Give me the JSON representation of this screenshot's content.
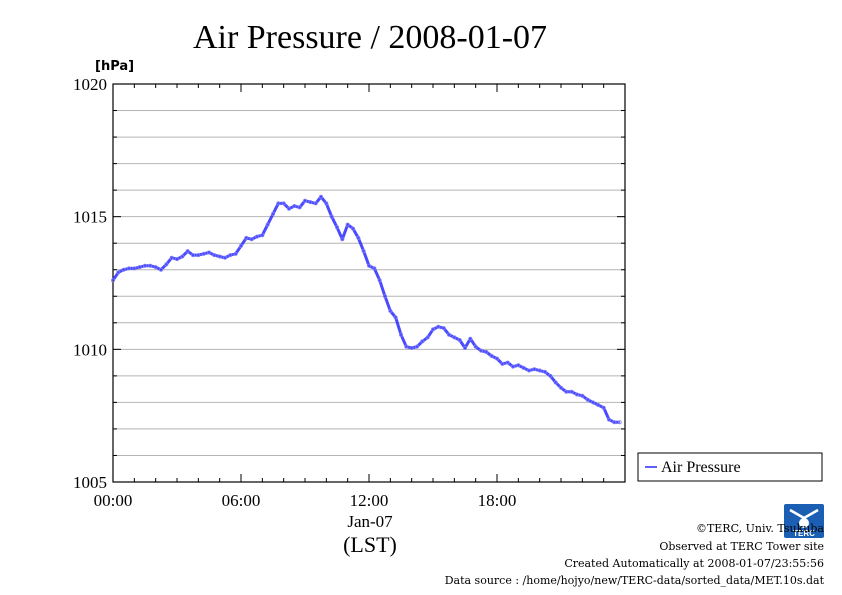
{
  "chart_data": {
    "type": "line",
    "title": "Air Pressure / 2008-01-07",
    "ylabel": "[hPa]",
    "xlabel_date": "Jan-07",
    "xlabel_tz": "(LST)",
    "ylim": [
      1005,
      1020
    ],
    "xlim_hours": [
      0,
      24
    ],
    "yticks": [
      "1005",
      "1010",
      "1015",
      "1020"
    ],
    "xticks": [
      {
        "hour": 0,
        "label": "00:00"
      },
      {
        "hour": 6,
        "label": "06:00"
      },
      {
        "hour": 12,
        "label": "12:00"
      },
      {
        "hour": 18,
        "label": "18:00"
      }
    ],
    "grid": true,
    "legend_position": "right",
    "series": [
      {
        "name": "Air Pressure",
        "color": "#2a2aff",
        "x": [
          0.0,
          0.25,
          0.5,
          0.75,
          1.0,
          1.25,
          1.5,
          1.75,
          2.0,
          2.25,
          2.5,
          2.75,
          3.0,
          3.25,
          3.5,
          3.75,
          4.0,
          4.25,
          4.5,
          4.75,
          5.0,
          5.25,
          5.5,
          5.75,
          6.0,
          6.25,
          6.5,
          6.75,
          7.0,
          7.25,
          7.5,
          7.75,
          8.0,
          8.25,
          8.5,
          8.75,
          9.0,
          9.25,
          9.5,
          9.75,
          10.0,
          10.25,
          10.5,
          10.75,
          11.0,
          11.25,
          11.5,
          11.75,
          12.0,
          12.25,
          12.5,
          12.75,
          13.0,
          13.25,
          13.5,
          13.75,
          14.0,
          14.25,
          14.5,
          14.75,
          15.0,
          15.25,
          15.5,
          15.75,
          16.0,
          16.25,
          16.5,
          16.75,
          17.0,
          17.25,
          17.5,
          17.75,
          18.0,
          18.25,
          18.5,
          18.75,
          19.0,
          19.25,
          19.5,
          19.75,
          20.0,
          20.25,
          20.5,
          20.75,
          21.0,
          21.25,
          21.5,
          21.75,
          22.0,
          22.25,
          22.5,
          22.75,
          23.0,
          23.25,
          23.5,
          23.75
        ],
        "values": [
          1012.6,
          1012.9,
          1013.0,
          1013.05,
          1013.05,
          1013.1,
          1013.15,
          1013.15,
          1013.1,
          1013.0,
          1013.2,
          1013.45,
          1013.4,
          1013.5,
          1013.7,
          1013.55,
          1013.55,
          1013.6,
          1013.65,
          1013.55,
          1013.5,
          1013.45,
          1013.55,
          1013.6,
          1013.9,
          1014.2,
          1014.15,
          1014.25,
          1014.3,
          1014.7,
          1015.1,
          1015.5,
          1015.5,
          1015.3,
          1015.4,
          1015.35,
          1015.6,
          1015.55,
          1015.5,
          1015.75,
          1015.5,
          1015.0,
          1014.6,
          1014.15,
          1014.7,
          1014.55,
          1014.2,
          1013.7,
          1013.15,
          1013.05,
          1012.6,
          1012.0,
          1011.45,
          1011.2,
          1010.55,
          1010.1,
          1010.05,
          1010.1,
          1010.3,
          1010.45,
          1010.75,
          1010.85,
          1010.8,
          1010.55,
          1010.45,
          1010.35,
          1010.05,
          1010.4,
          1010.1,
          1009.95,
          1009.9,
          1009.75,
          1009.65,
          1009.45,
          1009.5,
          1009.35,
          1009.4,
          1009.3,
          1009.2,
          1009.25,
          1009.2,
          1009.15,
          1009.0,
          1008.75,
          1008.55,
          1008.4,
          1008.4,
          1008.3,
          1008.25,
          1008.1,
          1008.0,
          1007.9,
          1007.8,
          1007.35,
          1007.25,
          1007.25
        ]
      }
    ]
  },
  "footer": {
    "copyright": "©TERC, Univ. Tsukuba",
    "observed": "Observed at TERC Tower site",
    "created": "Created Automatically at 2008-01-07/23:55:56",
    "source": "Data source : /home/hojyo/new/TERC-data/sorted_data/MET.10s.dat"
  },
  "logo": {
    "text": "TERC",
    "color": "#1a5fb4"
  }
}
